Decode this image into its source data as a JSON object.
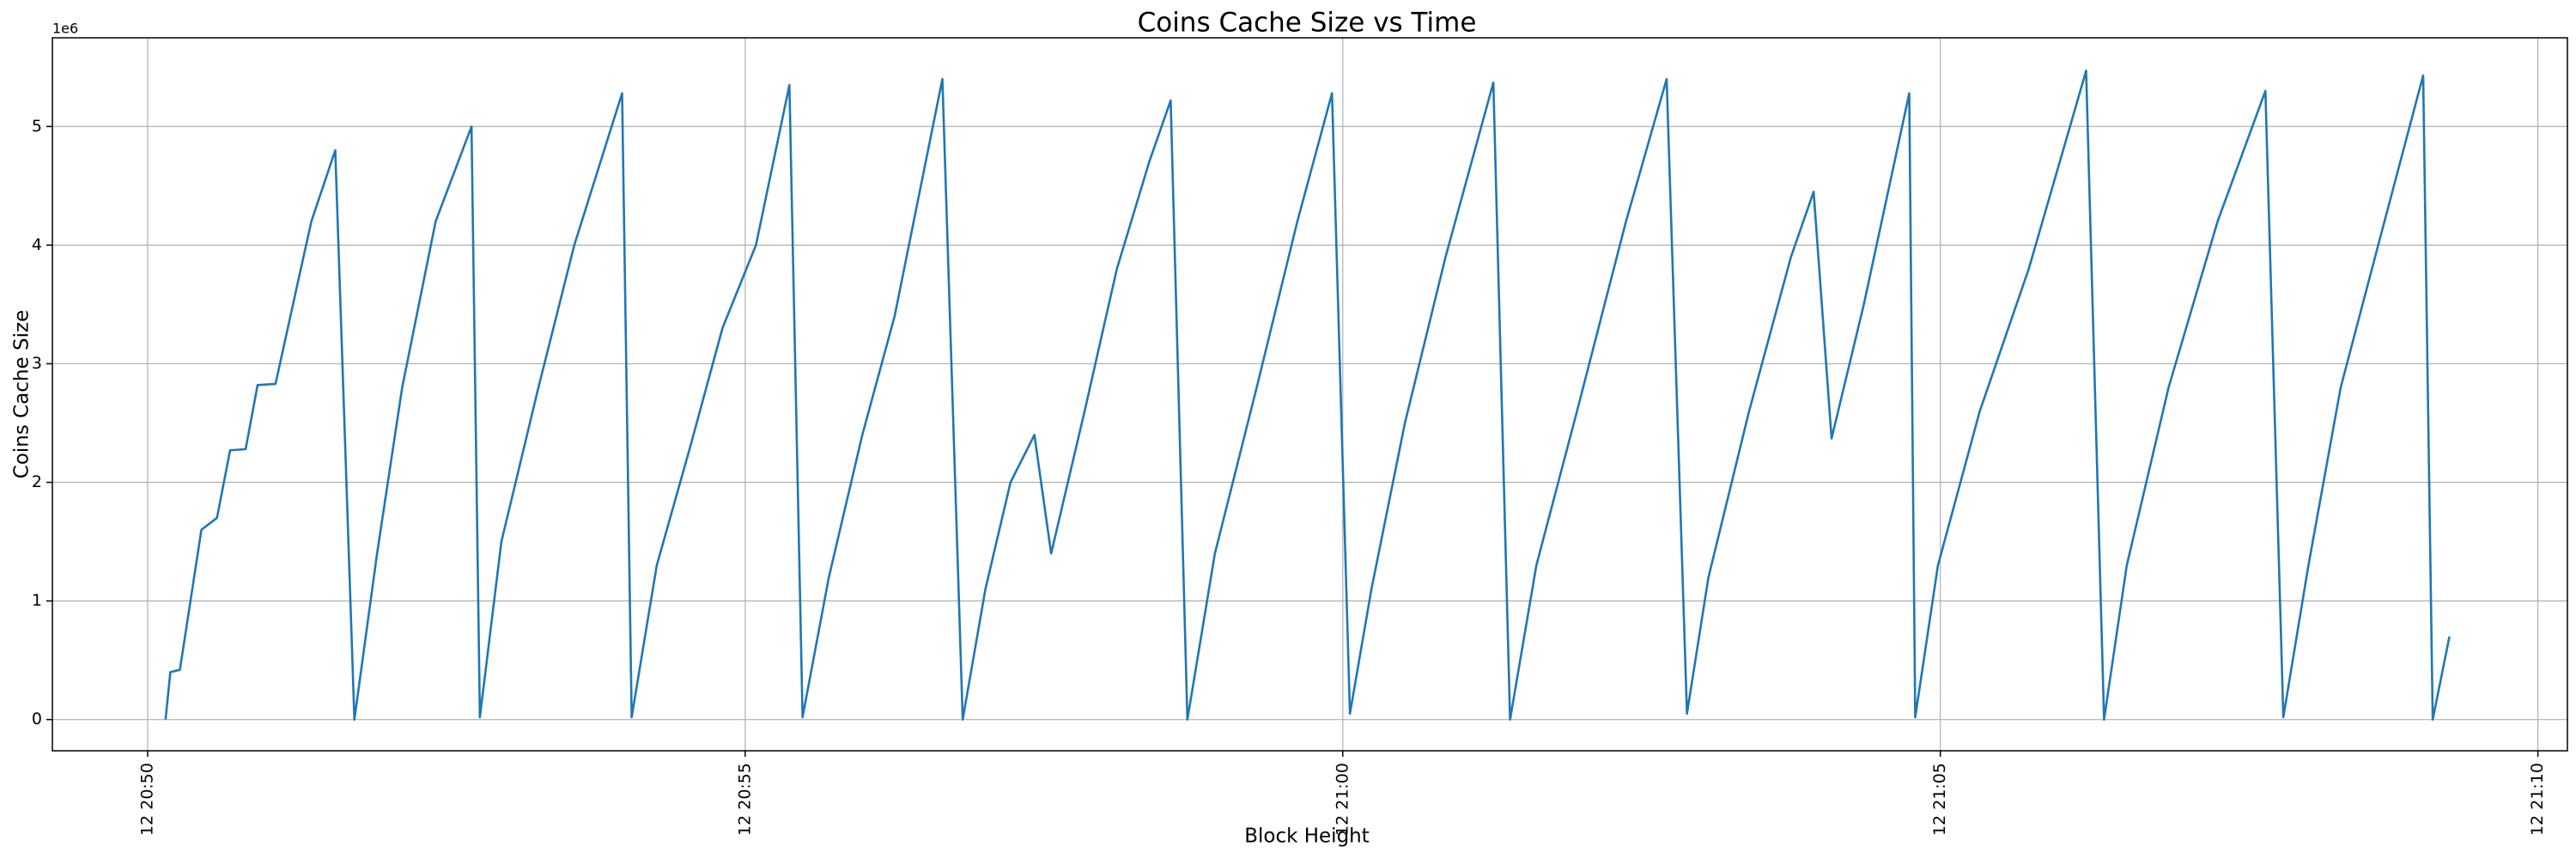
{
  "chart_data": {
    "type": "line",
    "title": "Coins Cache Size vs Time",
    "x_label": "Block Height",
    "y_label": "Coins Cache Size",
    "y_offset_label": "1e6",
    "xlim": [
      1249.203,
      1270.247
    ],
    "ylim": [
      -0.263,
      5.748
    ],
    "xticks": [
      {
        "value": 1250,
        "label": "12 20:50"
      },
      {
        "value": 1255,
        "label": "12 20:55"
      },
      {
        "value": 1260,
        "label": "12 21:00"
      },
      {
        "value": 1265,
        "label": "12 21:05"
      },
      {
        "value": 1270,
        "label": "12 21:10"
      }
    ],
    "yticks": [
      0,
      1,
      2,
      3,
      4,
      5
    ],
    "grid": true,
    "series": [
      {
        "color": "#1f77b4",
        "x": [
          1250.15,
          1250.19,
          1250.27,
          1250.45,
          1250.58,
          1250.69,
          1250.82,
          1250.92,
          1251.07,
          1251.26,
          1251.37,
          1251.57,
          1251.73,
          1251.92,
          1252.13,
          1252.41,
          1252.71,
          1252.78,
          1252.96,
          1253.27,
          1253.57,
          1253.97,
          1254.05,
          1254.26,
          1254.54,
          1254.81,
          1255.09,
          1255.37,
          1255.48,
          1255.7,
          1255.98,
          1256.25,
          1256.65,
          1256.82,
          1257.01,
          1257.22,
          1257.42,
          1257.56,
          1257.84,
          1258.11,
          1258.38,
          1258.56,
          1258.7,
          1258.93,
          1259.28,
          1259.62,
          1259.91,
          1260.06,
          1260.24,
          1260.52,
          1260.86,
          1261.26,
          1261.4,
          1261.62,
          1261.96,
          1262.37,
          1262.71,
          1262.88,
          1263.06,
          1263.4,
          1263.75,
          1263.94,
          1264.09,
          1264.36,
          1264.74,
          1264.79,
          1264.98,
          1265.33,
          1265.74,
          1266.22,
          1266.37,
          1266.56,
          1266.91,
          1267.32,
          1267.72,
          1267.87,
          1268.08,
          1268.35,
          1268.69,
          1269.04,
          1269.12,
          1269.2,
          1269.26
        ],
        "values": [
          0,
          0.4,
          0.42,
          1.6,
          1.7,
          2.27,
          2.28,
          2.82,
          2.83,
          3.7,
          4.2,
          4.8,
          0,
          1.4,
          2.8,
          4.2,
          5.0,
          0.02,
          1.5,
          2.8,
          4.0,
          5.28,
          0.02,
          1.3,
          2.3,
          3.3,
          4.0,
          5.35,
          0.02,
          1.2,
          2.4,
          3.4,
          5.4,
          0,
          1.1,
          2.0,
          2.4,
          1.4,
          2.6,
          3.8,
          4.7,
          5.22,
          0,
          1.4,
          2.8,
          4.2,
          5.28,
          0.05,
          1.1,
          2.5,
          3.9,
          5.37,
          0,
          1.3,
          2.6,
          4.2,
          5.4,
          0.05,
          1.2,
          2.6,
          3.9,
          4.45,
          2.37,
          3.5,
          5.28,
          0.02,
          1.3,
          2.6,
          3.8,
          5.47,
          0,
          1.3,
          2.8,
          4.2,
          5.3,
          0.02,
          1.3,
          2.8,
          4.1,
          5.43,
          0,
          0.4,
          0.7
        ]
      }
    ]
  }
}
